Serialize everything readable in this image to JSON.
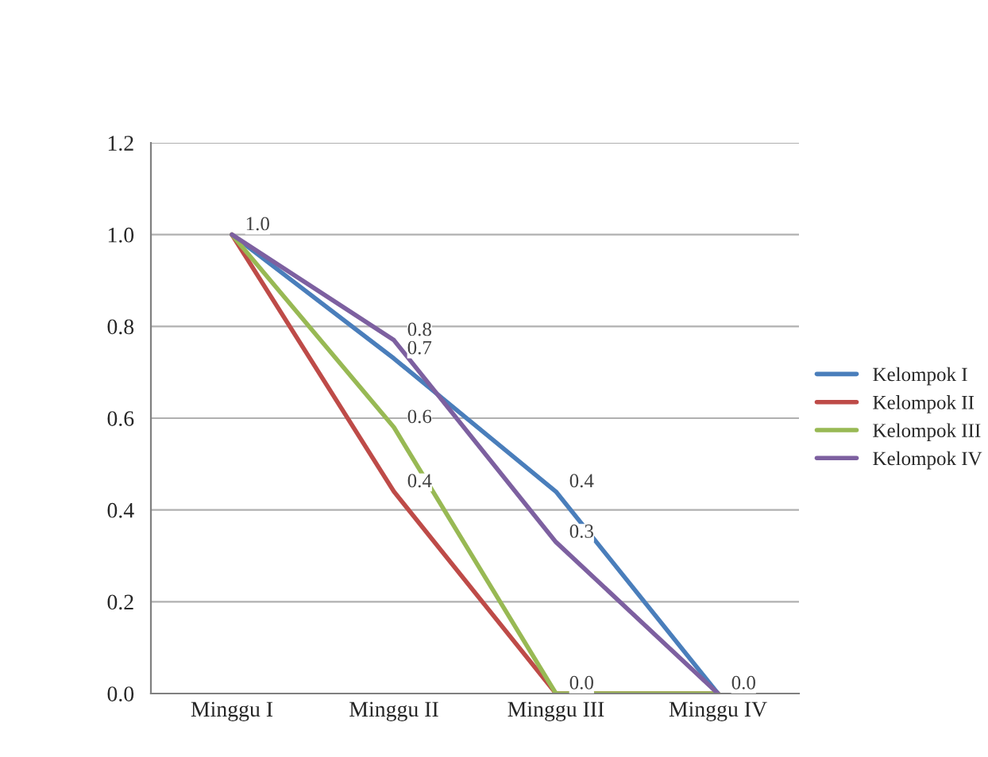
{
  "chart_data": {
    "type": "line",
    "categories": [
      "Minggu I",
      "Minggu II",
      "Minggu III",
      "Minggu IV"
    ],
    "series": [
      {
        "name": "Kelompok I",
        "color": "#4a7ebb",
        "values": [
          1.0,
          0.73,
          0.44,
          0.0
        ],
        "value_labels": [
          "1.0",
          "0.7",
          "0.4",
          "0.0"
        ]
      },
      {
        "name": "Kelompok II",
        "color": "#be4b48",
        "values": [
          1.0,
          0.44,
          0.0,
          0.0
        ],
        "value_labels": [
          null,
          "0.4",
          null,
          null
        ]
      },
      {
        "name": "Kelompok III",
        "color": "#98b954",
        "values": [
          1.0,
          0.58,
          0.0,
          0.0
        ],
        "value_labels": [
          null,
          "0.6",
          "0.0",
          null
        ]
      },
      {
        "name": "Kelompok IV",
        "color": "#7d60a0",
        "values": [
          1.0,
          0.77,
          0.33,
          0.0
        ],
        "value_labels": [
          null,
          "0.8",
          "0.3",
          null
        ]
      }
    ],
    "ylim": [
      0,
      1.2
    ],
    "yticks": [
      {
        "value": 0,
        "label": "0.0"
      },
      {
        "value": 0.2,
        "label": "0.2"
      },
      {
        "value": 0.4,
        "label": "0.4"
      },
      {
        "value": 0.6,
        "label": "0.6"
      },
      {
        "value": 0.8,
        "label": "0.8"
      },
      {
        "value": 1.0,
        "label": "1.0"
      },
      {
        "value": 1.2,
        "label": "1.2"
      }
    ],
    "grid": "y",
    "legend": "right",
    "marker": "none",
    "line_style": "solid"
  }
}
